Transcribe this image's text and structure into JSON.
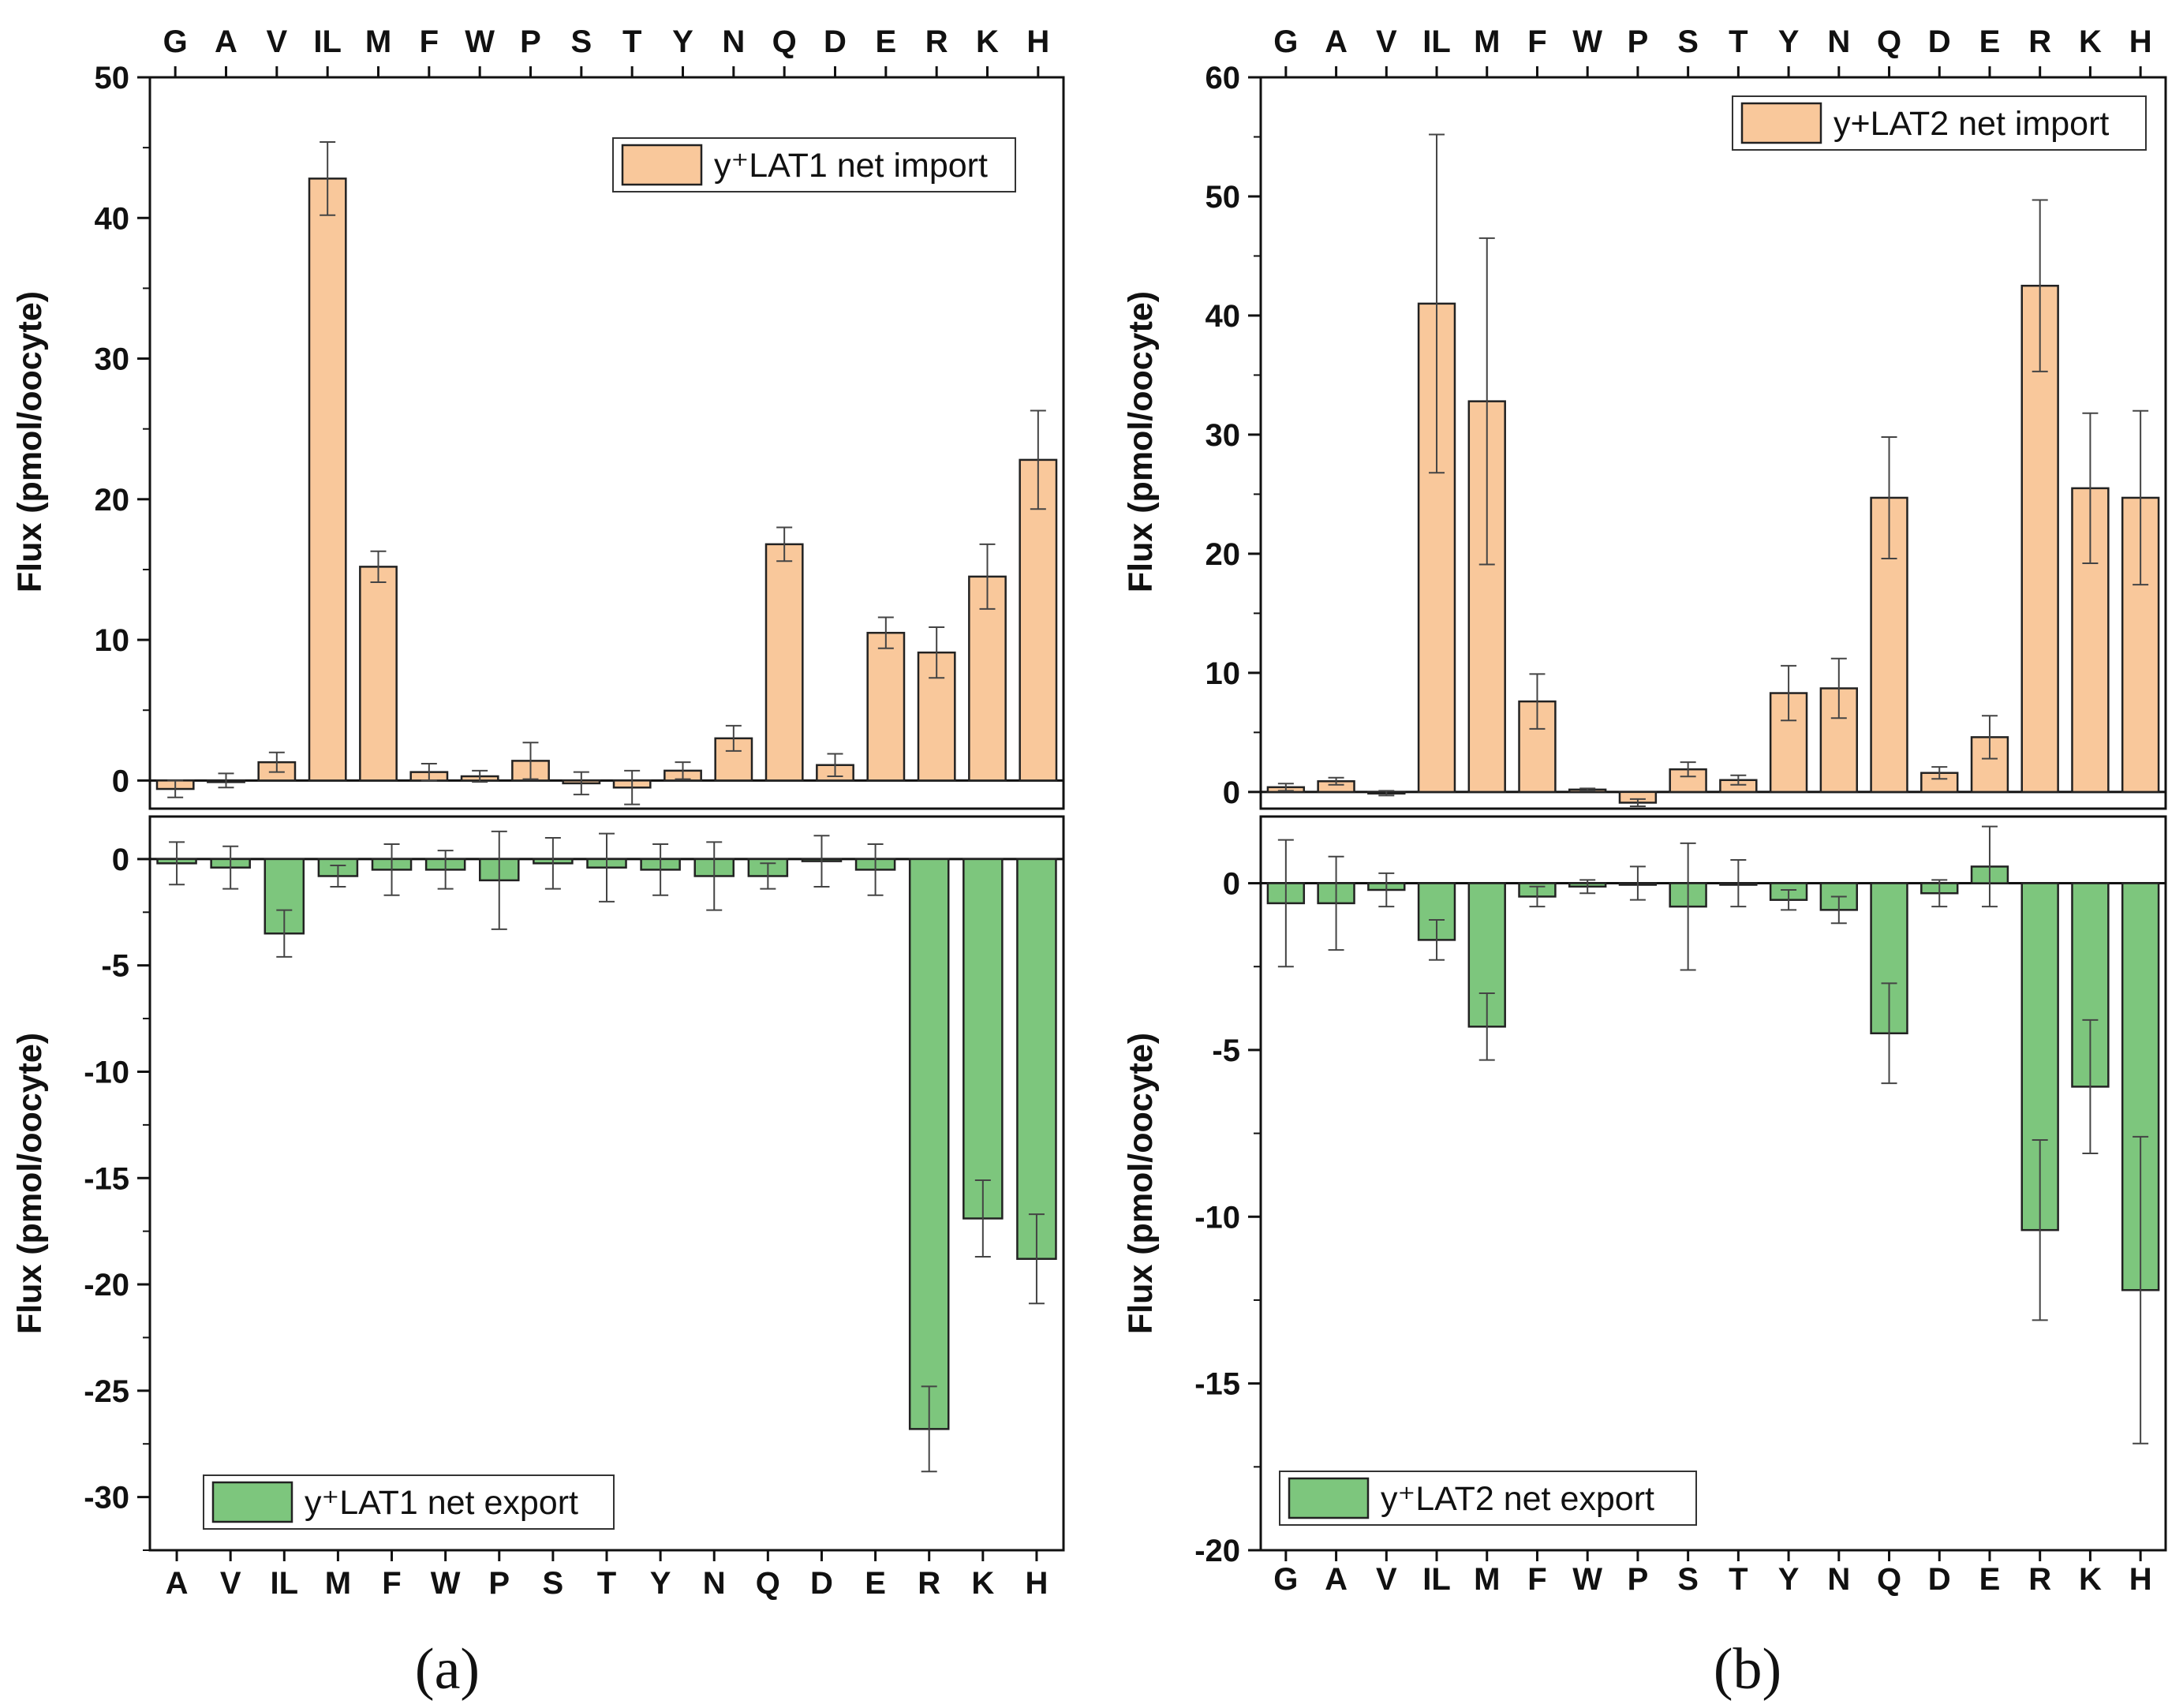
{
  "colors": {
    "import_fill": "#F9C89B",
    "export_fill": "#7DC67D",
    "stroke": "#222222",
    "axis": "#111111"
  },
  "panel_labels": [
    "(a)",
    "(b)"
  ],
  "chart_data": [
    {
      "type": "bar",
      "panel": "(a)",
      "part": "top",
      "categories": [
        "G",
        "A",
        "V",
        "IL",
        "M",
        "F",
        "W",
        "P",
        "S",
        "T",
        "Y",
        "N",
        "Q",
        "D",
        "E",
        "R",
        "K",
        "H"
      ],
      "series": [
        {
          "name": "y⁺LAT1 net import",
          "values": [
            -0.6,
            0.0,
            1.3,
            42.8,
            15.2,
            0.6,
            0.3,
            1.4,
            -0.2,
            -0.5,
            0.7,
            3.0,
            16.8,
            1.1,
            10.5,
            9.1,
            14.5,
            22.8
          ]
        }
      ],
      "errors": [
        0.6,
        0.5,
        0.7,
        2.6,
        1.1,
        0.6,
        0.4,
        1.3,
        0.8,
        1.2,
        0.6,
        0.9,
        1.2,
        0.8,
        1.1,
        1.8,
        2.3,
        3.5
      ],
      "ylabel": "Flux (pmol/oocyte)",
      "ylim": [
        -2,
        50
      ],
      "yticks": [
        0,
        10,
        20,
        30,
        40,
        50
      ],
      "legend": "top-right"
    },
    {
      "type": "bar",
      "panel": "(a)",
      "part": "bottom",
      "categories": [
        "A",
        "V",
        "IL",
        "M",
        "F",
        "W",
        "P",
        "S",
        "T",
        "Y",
        "N",
        "Q",
        "D",
        "E",
        "R",
        "K",
        "H"
      ],
      "series": [
        {
          "name": "y⁺LAT1 net export",
          "values": [
            -0.2,
            -0.4,
            -3.5,
            -0.8,
            -0.5,
            -0.5,
            -1.0,
            -0.2,
            -0.4,
            -0.5,
            -0.8,
            -0.8,
            -0.1,
            -0.5,
            -26.8,
            -16.9,
            -18.8
          ]
        }
      ],
      "errors": [
        1.0,
        1.0,
        1.1,
        0.5,
        1.2,
        0.9,
        2.3,
        1.2,
        1.6,
        1.2,
        1.6,
        0.6,
        1.2,
        1.2,
        2.0,
        1.8,
        2.1
      ],
      "ylabel": "Flux (pmol/oocyte)",
      "ylim": [
        -32.5,
        2
      ],
      "yticks": [
        0,
        -5,
        -10,
        -15,
        -20,
        -25,
        -30
      ],
      "legend": "bottom-left"
    },
    {
      "type": "bar",
      "panel": "(b)",
      "part": "top",
      "categories": [
        "G",
        "A",
        "V",
        "IL",
        "M",
        "F",
        "W",
        "P",
        "S",
        "T",
        "Y",
        "N",
        "Q",
        "D",
        "E",
        "R",
        "K",
        "H"
      ],
      "series": [
        {
          "name": "y+LAT2 net import",
          "values": [
            0.4,
            0.9,
            -0.1,
            41.0,
            32.8,
            7.6,
            0.2,
            -0.9,
            1.9,
            1.0,
            8.3,
            8.7,
            24.7,
            1.6,
            4.6,
            42.5,
            25.5,
            24.7
          ]
        }
      ],
      "errors": [
        0.3,
        0.3,
        0.2,
        14.2,
        13.7,
        2.3,
        0.1,
        0.3,
        0.6,
        0.4,
        2.3,
        2.5,
        5.1,
        0.5,
        1.8,
        7.2,
        6.3,
        7.3
      ],
      "ylabel": "Flux (pmol/oocyte)",
      "ylim": [
        -1.4,
        60
      ],
      "yticks": [
        0,
        10,
        20,
        30,
        40,
        50,
        60
      ],
      "legend": "top-right"
    },
    {
      "type": "bar",
      "panel": "(b)",
      "part": "bottom",
      "categories": [
        "G",
        "A",
        "V",
        "IL",
        "M",
        "F",
        "W",
        "P",
        "S",
        "T",
        "Y",
        "N",
        "Q",
        "D",
        "E",
        "R",
        "K",
        "H"
      ],
      "series": [
        {
          "name": "y⁺LAT2 net export",
          "values": [
            -0.6,
            -0.6,
            -0.2,
            -1.7,
            -4.3,
            -0.4,
            -0.1,
            0.0,
            -0.7,
            0.0,
            -0.5,
            -0.8,
            -4.5,
            -0.3,
            0.5,
            -10.4,
            -6.1,
            -12.2
          ]
        }
      ],
      "errors": [
        1.9,
        1.4,
        0.5,
        0.6,
        1.0,
        0.3,
        0.2,
        0.5,
        1.9,
        0.7,
        0.3,
        0.4,
        1.5,
        0.4,
        1.2,
        2.7,
        2.0,
        4.6
      ],
      "ylabel": "Flux (pmol/oocyte)",
      "ylim": [
        -20,
        2.0
      ],
      "yticks": [
        0,
        -5,
        -10,
        -15,
        -20
      ],
      "legend": "bottom-left"
    }
  ]
}
